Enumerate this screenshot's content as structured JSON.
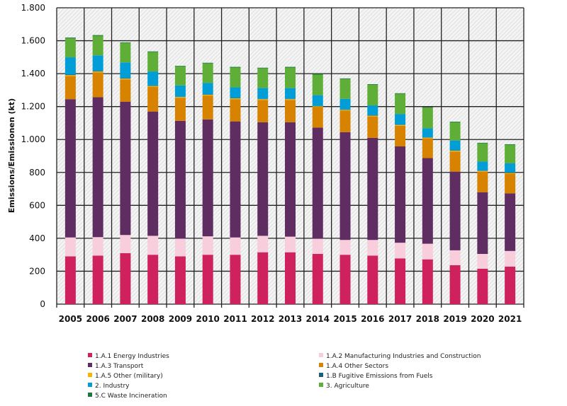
{
  "chart_data": {
    "type": "bar",
    "stacked": true,
    "title": "",
    "xlabel": "",
    "ylabel": "Emissions/Emissionen (kt)",
    "ylim": [
      0,
      1800
    ],
    "yticks": [
      0,
      200,
      400,
      600,
      800,
      1000,
      1200,
      1400,
      1600,
      1800
    ],
    "ytick_labels": [
      "0",
      "200",
      "400",
      "600",
      "800",
      "1.000",
      "1.200",
      "1.400",
      "1.600",
      "1.800"
    ],
    "grid": true,
    "legend_position": "bottom",
    "categories": [
      "2005",
      "2006",
      "2007",
      "2008",
      "2009",
      "2010",
      "2011",
      "2012",
      "2013",
      "2014",
      "2015",
      "2016",
      "2017",
      "2018",
      "2019",
      "2020",
      "2021"
    ],
    "series": [
      {
        "name": "1.A.1 Energy Industries",
        "color": "#d0215f",
        "values": [
          290,
          295,
          310,
          300,
          290,
          300,
          300,
          315,
          315,
          305,
          300,
          295,
          278,
          272,
          237,
          215,
          228
        ]
      },
      {
        "name": "1.A.2 Manufacturing Industries and Construction",
        "color": "#f8cddc",
        "values": [
          115,
          112,
          110,
          115,
          108,
          112,
          105,
          100,
          95,
          92,
          90,
          95,
          95,
          95,
          90,
          90,
          95
        ]
      },
      {
        "name": "1.A.3 Transport",
        "color": "#5f2d62",
        "values": [
          840,
          850,
          810,
          755,
          715,
          710,
          705,
          690,
          695,
          675,
          655,
          620,
          585,
          520,
          478,
          375,
          350
        ]
      },
      {
        "name": "1.A.4 Other Sectors",
        "color": "#d88300",
        "values": [
          140,
          150,
          135,
          150,
          140,
          145,
          135,
          135,
          135,
          125,
          130,
          130,
          125,
          120,
          122,
          125,
          120
        ]
      },
      {
        "name": "1.A.5 Other (military)",
        "color": "#f7b500",
        "values": [
          6,
          6,
          5,
          5,
          5,
          5,
          5,
          5,
          5,
          5,
          5,
          5,
          5,
          4,
          5,
          4,
          4
        ]
      },
      {
        "name": "1.B Fugitive Emissions from Fuels",
        "color": "#1a5f7a",
        "values": [
          3,
          3,
          3,
          3,
          2,
          2,
          2,
          2,
          2,
          2,
          2,
          2,
          2,
          2,
          2,
          2,
          3
        ]
      },
      {
        "name": "2. Industry",
        "color": "#009dd6",
        "values": [
          105,
          95,
          95,
          85,
          68,
          70,
          65,
          65,
          65,
          65,
          65,
          60,
          65,
          55,
          60,
          55,
          55
        ]
      },
      {
        "name": "3. Agriculture",
        "color": "#5fae38",
        "values": [
          115,
          118,
          118,
          118,
          115,
          118,
          120,
          120,
          125,
          125,
          120,
          125,
          122,
          125,
          110,
          110,
          112
        ]
      },
      {
        "name": "5.C Waste Incineration",
        "color": "#1a7a3a",
        "values": [
          5,
          5,
          4,
          4,
          4,
          4,
          4,
          4,
          4,
          6,
          4,
          4,
          4,
          4,
          4,
          4,
          4
        ]
      }
    ]
  }
}
